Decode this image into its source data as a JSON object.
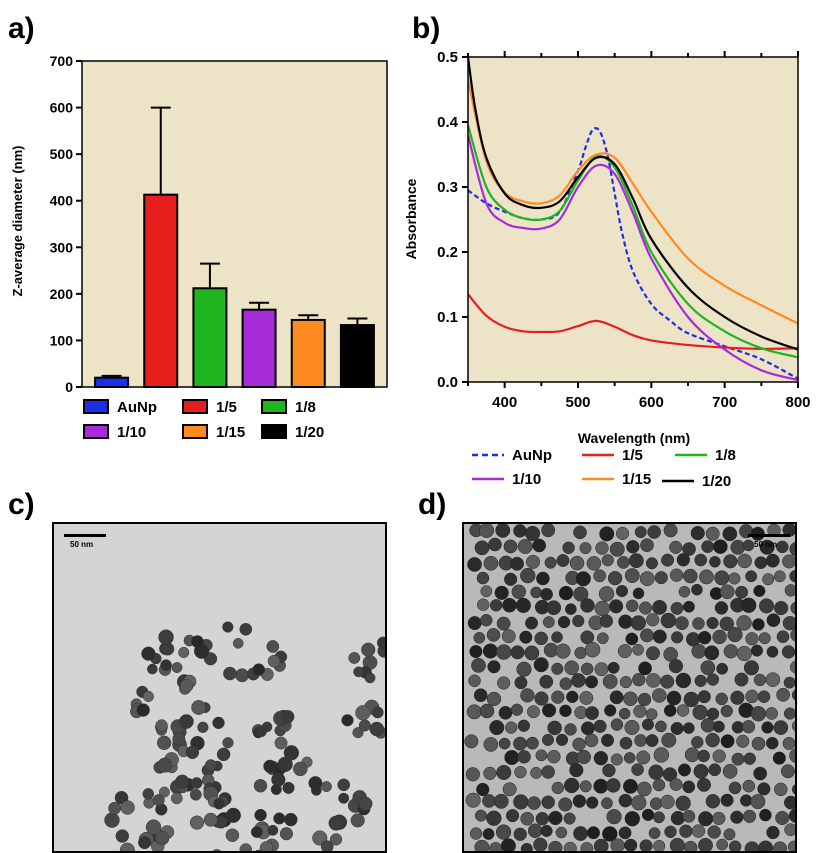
{
  "panels": {
    "a": "a)",
    "b": "b)",
    "c": "c)",
    "d": "d)"
  },
  "colors": {
    "plot_bg": "#ede3c7",
    "AuNp": "#1b2fe6",
    "1/5": "#e51e1e",
    "1/8": "#1fb51f",
    "1/10": "#a62cd8",
    "1/15": "#ff8a1f",
    "1/20": "#000000"
  },
  "chart_data": [
    {
      "type": "bar",
      "ylabel": "Z-average diameter (nm)",
      "xlabel": "",
      "ylim": [
        0,
        700
      ],
      "yticks": [
        0,
        100,
        200,
        300,
        400,
        500,
        600,
        700
      ],
      "categories": [
        "AuNp",
        "1/5",
        "1/8",
        "1/10",
        "1/15",
        "1/20"
      ],
      "values": [
        20,
        413,
        212,
        166,
        144,
        133
      ],
      "errors": [
        4,
        187,
        53,
        15,
        10,
        14
      ],
      "legend": [
        "AuNp",
        "1/5",
        "1/8",
        "1/10",
        "1/15",
        "1/20"
      ],
      "legend_position": "bottom"
    },
    {
      "type": "line",
      "xlabel": "Wavelength (nm)",
      "ylabel": "Absorbance",
      "xlim": [
        350,
        800
      ],
      "ylim": [
        0.0,
        0.5
      ],
      "xticks": [
        400,
        500,
        600,
        700,
        800
      ],
      "yticks": [
        "0.0",
        "0.1",
        "0.2",
        "0.3",
        "0.4",
        "0.5"
      ],
      "legend_position": "bottom",
      "series": [
        {
          "name": "AuNp",
          "style": "dashed",
          "x": [
            350,
            375,
            400,
            425,
            450,
            475,
            500,
            510,
            520,
            530,
            540,
            550,
            560,
            575,
            600,
            625,
            650,
            700,
            750,
            800
          ],
          "y": [
            0.295,
            0.275,
            0.262,
            0.252,
            0.25,
            0.262,
            0.325,
            0.36,
            0.388,
            0.385,
            0.35,
            0.29,
            0.23,
            0.17,
            0.12,
            0.095,
            0.075,
            0.055,
            0.035,
            0.005
          ]
        },
        {
          "name": "1/5",
          "style": "solid",
          "x": [
            350,
            375,
            400,
            425,
            450,
            475,
            500,
            525,
            550,
            575,
            600,
            650,
            700,
            750,
            800
          ],
          "y": [
            0.135,
            0.102,
            0.085,
            0.078,
            0.077,
            0.078,
            0.086,
            0.094,
            0.085,
            0.072,
            0.064,
            0.057,
            0.053,
            0.051,
            0.052
          ]
        },
        {
          "name": "1/8",
          "style": "solid",
          "x": [
            350,
            375,
            400,
            425,
            450,
            475,
            500,
            525,
            550,
            575,
            600,
            650,
            700,
            750,
            800
          ],
          "y": [
            0.395,
            0.3,
            0.265,
            0.252,
            0.25,
            0.263,
            0.31,
            0.347,
            0.33,
            0.27,
            0.2,
            0.12,
            0.078,
            0.052,
            0.038
          ]
        },
        {
          "name": "1/10",
          "style": "solid",
          "x": [
            350,
            375,
            400,
            425,
            450,
            475,
            500,
            525,
            550,
            575,
            600,
            650,
            700,
            750,
            800
          ],
          "y": [
            0.38,
            0.275,
            0.245,
            0.237,
            0.236,
            0.25,
            0.3,
            0.333,
            0.32,
            0.26,
            0.19,
            0.1,
            0.05,
            0.018,
            0.003
          ]
        },
        {
          "name": "1/15",
          "style": "solid",
          "x": [
            350,
            375,
            400,
            425,
            450,
            475,
            500,
            525,
            550,
            575,
            600,
            650,
            700,
            750,
            800
          ],
          "y": [
            0.465,
            0.34,
            0.292,
            0.278,
            0.275,
            0.287,
            0.325,
            0.35,
            0.345,
            0.305,
            0.262,
            0.19,
            0.148,
            0.118,
            0.09
          ]
        },
        {
          "name": "1/20",
          "style": "solid",
          "x": [
            350,
            360,
            375,
            400,
            425,
            450,
            475,
            500,
            525,
            550,
            575,
            600,
            650,
            700,
            750,
            800
          ],
          "y": [
            0.5,
            0.42,
            0.345,
            0.29,
            0.272,
            0.268,
            0.278,
            0.315,
            0.345,
            0.335,
            0.282,
            0.22,
            0.145,
            0.1,
            0.07,
            0.05
          ]
        }
      ]
    }
  ],
  "tem_c": {
    "scale_label": "50 nm"
  },
  "tem_d": {
    "scale_label": "50 nm"
  }
}
